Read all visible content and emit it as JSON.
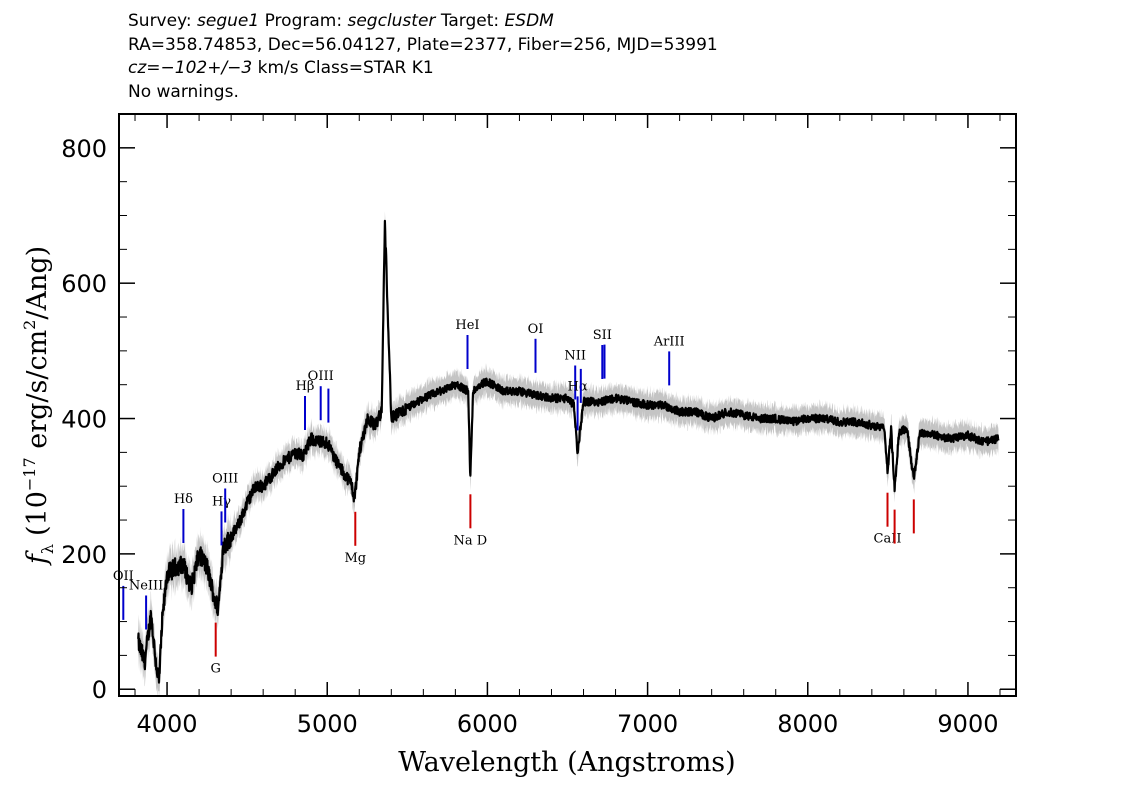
{
  "header": {
    "line1": {
      "survey_label": "Survey:",
      "survey": "segue1",
      "program_label": "Program:",
      "program": "segcluster",
      "target_label": "Target:",
      "target": "ESDM"
    },
    "line2": "RA=358.74853, Dec=56.04127, Plate=2377, Fiber=256, MJD=53991",
    "line3": {
      "cz_label": "cz=",
      "cz_value": "−102+/−3",
      "cz_units": " km/s Class=STAR K1"
    },
    "line4": "No warnings."
  },
  "colors": {
    "flux": "#000000",
    "error": "#c4c4c4",
    "emission": "#0000cc",
    "absorption": "#cc0000",
    "frame": "#000000"
  },
  "chart_data": {
    "type": "line",
    "title": "",
    "xlabel": "Wavelength (Angstroms)",
    "ylabel": "f_λ (10^-17 erg/s/cm^2/Ang)",
    "ylabel_parts": {
      "f": "f",
      "lambda": "λ",
      "open": "(10",
      "exp1": "−17",
      "mid": " erg/s/cm",
      "exp2": "2",
      "close": "/Ang)"
    },
    "xlim": [
      3700,
      9300
    ],
    "ylim": [
      -10,
      850
    ],
    "x_ticks": [
      4000,
      5000,
      6000,
      7000,
      8000,
      9000
    ],
    "x_tick_labels": [
      "4000",
      "5000",
      "6000",
      "7000",
      "8000",
      "9000"
    ],
    "y_ticks": [
      0,
      200,
      400,
      600,
      800
    ],
    "y_tick_labels": [
      "0",
      "200",
      "400",
      "600",
      "800"
    ],
    "series": [
      {
        "name": "flux",
        "x": [
          3820,
          3860,
          3900,
          3930,
          3950,
          3970,
          4000,
          4050,
          4100,
          4150,
          4200,
          4250,
          4300,
          4320,
          4350,
          4400,
          4450,
          4500,
          4550,
          4600,
          4700,
          4800,
          4850,
          4900,
          4950,
          5000,
          5050,
          5100,
          5150,
          5170,
          5200,
          5250,
          5300,
          5340,
          5360,
          5400,
          5500,
          5600,
          5700,
          5800,
          5850,
          5880,
          5893,
          5910,
          5950,
          6000,
          6100,
          6200,
          6300,
          6400,
          6500,
          6540,
          6563,
          6600,
          6700,
          6800,
          6900,
          7000,
          7100,
          7200,
          7300,
          7400,
          7500,
          7600,
          7700,
          7800,
          7900,
          8000,
          8100,
          8200,
          8300,
          8400,
          8480,
          8498,
          8520,
          8542,
          8570,
          8620,
          8662,
          8700,
          8800,
          8900,
          9000,
          9100,
          9190
        ],
        "values": [
          70,
          40,
          110,
          40,
          10,
          100,
          170,
          180,
          185,
          150,
          200,
          180,
          130,
          120,
          210,
          225,
          245,
          275,
          300,
          300,
          330,
          350,
          345,
          370,
          365,
          365,
          340,
          320,
          305,
          280,
          350,
          400,
          390,
          410,
          690,
          400,
          415,
          430,
          440,
          450,
          445,
          440,
          310,
          440,
          450,
          455,
          440,
          440,
          435,
          430,
          430,
          420,
          350,
          425,
          425,
          430,
          425,
          420,
          420,
          410,
          410,
          400,
          410,
          405,
          400,
          400,
          395,
          400,
          400,
          395,
          395,
          390,
          385,
          320,
          385,
          295,
          380,
          385,
          310,
          380,
          375,
          370,
          375,
          365,
          370
        ]
      }
    ],
    "line_markers": [
      {
        "label": "OII",
        "wavelength": 3727,
        "kind": "emission"
      },
      {
        "label": "NeIII",
        "wavelength": 3869,
        "kind": "emission"
      },
      {
        "label": "Hδ",
        "wavelength": 4102,
        "kind": "emission"
      },
      {
        "label": "Hγ",
        "wavelength": 4340,
        "kind": "emission"
      },
      {
        "label": "OIII",
        "wavelength": 4363,
        "kind": "emission"
      },
      {
        "label": "Hβ",
        "wavelength": 4861,
        "kind": "emission"
      },
      {
        "label": "OIII",
        "wavelength": 4959,
        "kind": "emission"
      },
      {
        "label": "OIII",
        "wavelength": 5007,
        "kind": "emission"
      },
      {
        "label": "HeI",
        "wavelength": 5876,
        "kind": "emission"
      },
      {
        "label": "OI",
        "wavelength": 6300,
        "kind": "emission"
      },
      {
        "label": "NII",
        "wavelength": 6548,
        "kind": "emission"
      },
      {
        "label": "Hα",
        "wavelength": 6563,
        "kind": "emission"
      },
      {
        "label": "NII",
        "wavelength": 6583,
        "kind": "emission"
      },
      {
        "label": "SII",
        "wavelength": 6717,
        "kind": "emission"
      },
      {
        "label": "SII",
        "wavelength": 6731,
        "kind": "emission"
      },
      {
        "label": "ArIII",
        "wavelength": 7135,
        "kind": "emission"
      },
      {
        "label": "G",
        "wavelength": 4304,
        "kind": "absorption"
      },
      {
        "label": "Mg",
        "wavelength": 5175,
        "kind": "absorption"
      },
      {
        "label": "Na D",
        "wavelength": 5894,
        "kind": "absorption"
      },
      {
        "label": "CaII",
        "wavelength": 8498,
        "kind": "absorption"
      },
      {
        "label": "CaII",
        "wavelength": 8542,
        "kind": "absorption"
      },
      {
        "label": "CaII",
        "wavelength": 8662,
        "kind": "absorption"
      }
    ]
  }
}
